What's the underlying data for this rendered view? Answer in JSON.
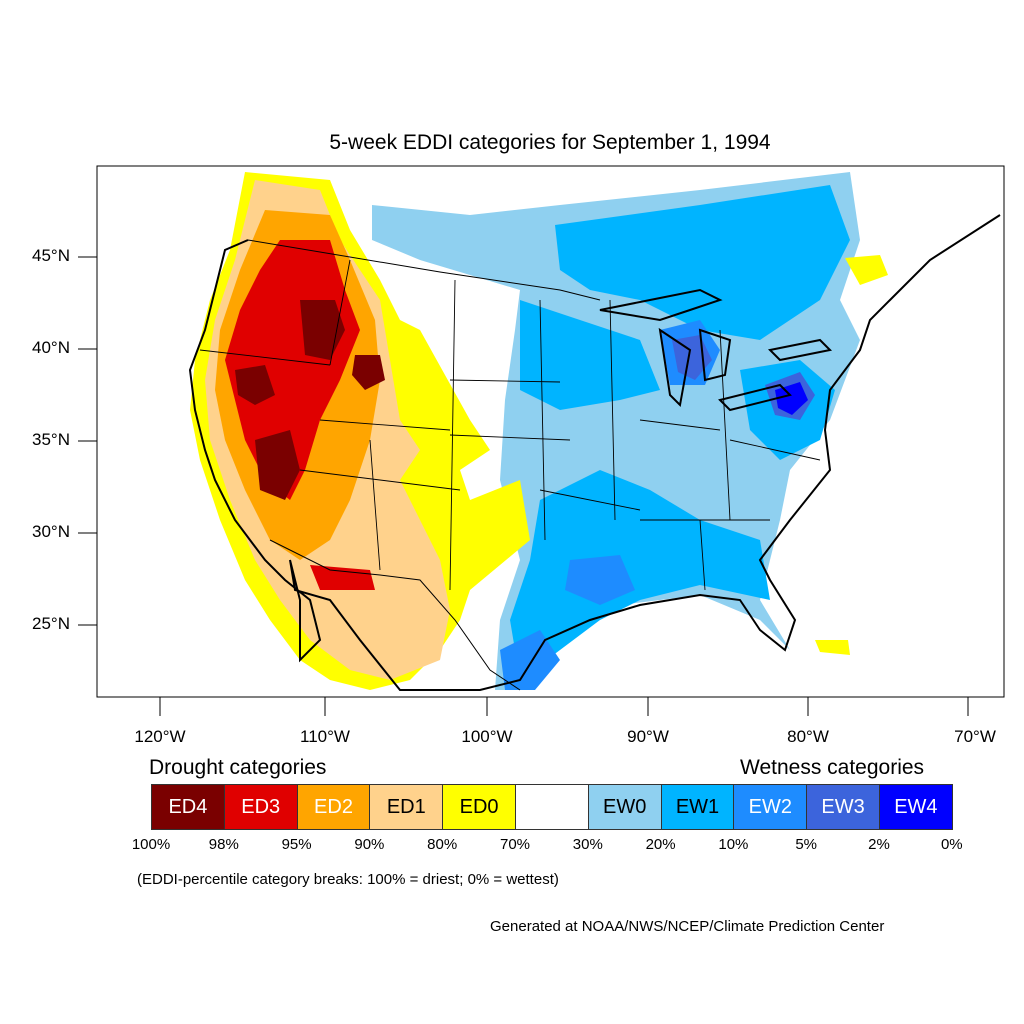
{
  "title": "5-week EDDI categories for September 1, 1994",
  "map": {
    "projection": "lambert-conformal",
    "region": "Contiguous United States",
    "lat_ticks": [
      "45°N",
      "40°N",
      "35°N",
      "30°N",
      "25°N"
    ],
    "lon_ticks": [
      "120°W",
      "110°W",
      "100°W",
      "90°W",
      "80°W",
      "70°W"
    ],
    "boundaries": [
      "coastlines",
      "state-borders",
      "country-borders",
      "great-lakes"
    ],
    "colors": {
      "ED4": "#7a0000",
      "ED3": "#e00000",
      "ED2": "#ffa500",
      "ED1": "#ffd28c",
      "ED0": "#ffff00",
      "neutral": "#ffffff",
      "EW0": "#8fd0f0",
      "EW1": "#00b4ff",
      "EW2": "#1e8cff",
      "EW3": "#3c64dc",
      "EW4": "#0000ff"
    }
  },
  "legend": {
    "drought_heading": "Drought categories",
    "wetness_heading": "Wetness categories",
    "categories": [
      {
        "label": "ED4",
        "color": "#7a0000",
        "text_color": "#ffffff"
      },
      {
        "label": "ED3",
        "color": "#e00000",
        "text_color": "#ffffff"
      },
      {
        "label": "ED2",
        "color": "#ffa500",
        "text_color": "#ffffff"
      },
      {
        "label": "ED1",
        "color": "#ffd28c",
        "text_color": "#000000"
      },
      {
        "label": "ED0",
        "color": "#ffff00",
        "text_color": "#000000"
      },
      {
        "label": "",
        "color": "#ffffff",
        "text_color": "#000000"
      },
      {
        "label": "EW0",
        "color": "#8fd0f0",
        "text_color": "#000000"
      },
      {
        "label": "EW1",
        "color": "#00b4ff",
        "text_color": "#000000"
      },
      {
        "label": "EW2",
        "color": "#1e8cff",
        "text_color": "#ffffff"
      },
      {
        "label": "EW3",
        "color": "#3c64dc",
        "text_color": "#ffffff"
      },
      {
        "label": "EW4",
        "color": "#0000ff",
        "text_color": "#ffffff"
      }
    ],
    "breaks": [
      "100%",
      "98%",
      "95%",
      "90%",
      "80%",
      "70%",
      "30%",
      "20%",
      "10%",
      "5%",
      "2%",
      "0%"
    ],
    "note": "(EDDI-percentile category breaks: 100% = driest; 0% = wettest)"
  },
  "credit": "Generated at NOAA/NWS/NCEP/Climate Prediction Center"
}
